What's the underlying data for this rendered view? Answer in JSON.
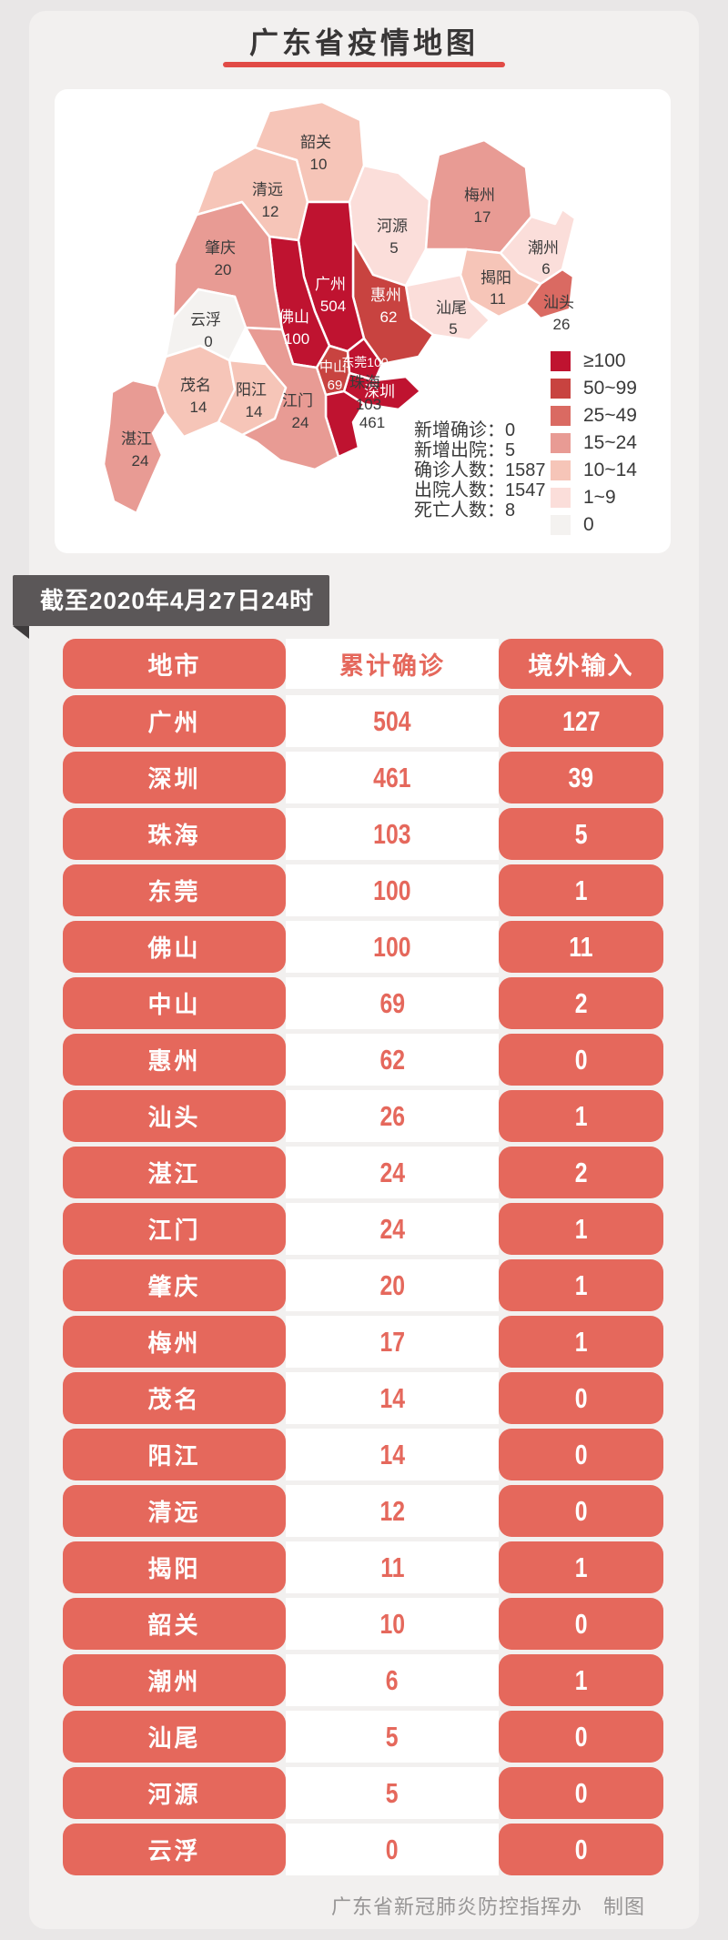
{
  "header": {
    "title": "广东省疫情地图"
  },
  "map_card": {
    "stats": [
      {
        "label": "新增确诊",
        "value": "0"
      },
      {
        "label": "新增出院",
        "value": "5"
      },
      {
        "label": "确诊人数",
        "value": "1587"
      },
      {
        "label": "出院人数",
        "value": "1547"
      },
      {
        "label": "死亡人数",
        "value": "8"
      }
    ],
    "legend": [
      {
        "label": "≥100",
        "color": "#bf1330"
      },
      {
        "label": "50~99",
        "color": "#c84340"
      },
      {
        "label": "25~49",
        "color": "#da6a62"
      },
      {
        "label": "15~24",
        "color": "#e89b94"
      },
      {
        "label": "10~14",
        "color": "#f6c5b8"
      },
      {
        "label": "1~9",
        "color": "#fbdeda"
      },
      {
        "label": "0",
        "color": "#f4f2f0"
      }
    ],
    "regions": [
      {
        "id": "shaoguan",
        "name": "韶关",
        "value": "10",
        "bucket": "10~14"
      },
      {
        "id": "qingyuan",
        "name": "清远",
        "value": "12",
        "bucket": "10~14"
      },
      {
        "id": "heyuan",
        "name": "河源",
        "value": "5",
        "bucket": "1~9"
      },
      {
        "id": "meizhou",
        "name": "梅州",
        "value": "17",
        "bucket": "15~24"
      },
      {
        "id": "chaozhou",
        "name": "潮州",
        "value": "6",
        "bucket": "1~9"
      },
      {
        "id": "shantou",
        "name": "汕头",
        "value": "26",
        "bucket": "25~49"
      },
      {
        "id": "jieyang",
        "name": "揭阳",
        "value": "11",
        "bucket": "10~14"
      },
      {
        "id": "shanwei",
        "name": "汕尾",
        "value": "5",
        "bucket": "1~9"
      },
      {
        "id": "huizhou",
        "name": "惠州",
        "value": "62",
        "bucket": "50~99"
      },
      {
        "id": "guangzhou",
        "name": "广州",
        "value": "504",
        "bucket": "≥100"
      },
      {
        "id": "dongguan",
        "name": "东莞",
        "value": "100",
        "bucket": "≥100"
      },
      {
        "id": "shenzhen",
        "name": "深圳",
        "value": "461",
        "bucket": "≥100"
      },
      {
        "id": "foshan",
        "name": "佛山",
        "value": "100",
        "bucket": "≥100"
      },
      {
        "id": "zhongshan",
        "name": "中山",
        "value": "69",
        "bucket": "50~99"
      },
      {
        "id": "zhuhai",
        "name": "珠海",
        "value": "103",
        "bucket": "≥100"
      },
      {
        "id": "jiangmen",
        "name": "江门",
        "value": "24",
        "bucket": "15~24"
      },
      {
        "id": "zhaoqing",
        "name": "肇庆",
        "value": "20",
        "bucket": "15~24"
      },
      {
        "id": "yunfu",
        "name": "云浮",
        "value": "0",
        "bucket": "0"
      },
      {
        "id": "maoming",
        "name": "茂名",
        "value": "14",
        "bucket": "10~14"
      },
      {
        "id": "yangjiang",
        "name": "阳江",
        "value": "14",
        "bucket": "10~14"
      },
      {
        "id": "zhanjiang",
        "name": "湛江",
        "value": "24",
        "bucket": "15~24"
      }
    ]
  },
  "banner": {
    "text": "截至2020年4月27日24时"
  },
  "table": {
    "headers": [
      "地市",
      "累计确诊",
      "境外输入"
    ],
    "rows": [
      {
        "city": "广州",
        "confirmed": "504",
        "imported": "127"
      },
      {
        "city": "深圳",
        "confirmed": "461",
        "imported": "39"
      },
      {
        "city": "珠海",
        "confirmed": "103",
        "imported": "5"
      },
      {
        "city": "东莞",
        "confirmed": "100",
        "imported": "1"
      },
      {
        "city": "佛山",
        "confirmed": "100",
        "imported": "11"
      },
      {
        "city": "中山",
        "confirmed": "69",
        "imported": "2"
      },
      {
        "city": "惠州",
        "confirmed": "62",
        "imported": "0"
      },
      {
        "city": "汕头",
        "confirmed": "26",
        "imported": "1"
      },
      {
        "city": "湛江",
        "confirmed": "24",
        "imported": "2"
      },
      {
        "city": "江门",
        "confirmed": "24",
        "imported": "1"
      },
      {
        "city": "肇庆",
        "confirmed": "20",
        "imported": "1"
      },
      {
        "city": "梅州",
        "confirmed": "17",
        "imported": "1"
      },
      {
        "city": "茂名",
        "confirmed": "14",
        "imported": "0"
      },
      {
        "city": "阳江",
        "confirmed": "14",
        "imported": "0"
      },
      {
        "city": "清远",
        "confirmed": "12",
        "imported": "0"
      },
      {
        "city": "揭阳",
        "confirmed": "11",
        "imported": "1"
      },
      {
        "city": "韶关",
        "confirmed": "10",
        "imported": "0"
      },
      {
        "city": "潮州",
        "confirmed": "6",
        "imported": "1"
      },
      {
        "city": "汕尾",
        "confirmed": "5",
        "imported": "0"
      },
      {
        "city": "河源",
        "confirmed": "5",
        "imported": "0"
      },
      {
        "city": "云浮",
        "confirmed": "0",
        "imported": "0"
      }
    ]
  },
  "footer": {
    "credit": "广东省新冠肺炎防控指挥办　制图"
  },
  "colors": {
    "accent_red": "#e5685c",
    "banner_gray": "#5b5758",
    "underline_red": "#e14b46"
  },
  "chart_data": {
    "type": "choropleth+table",
    "title": "广东省疫情地图",
    "as_of": "截至2020年4月27日24时",
    "summary": {
      "新增确诊": 0,
      "新增出院": 5,
      "确诊人数": 1587,
      "出院人数": 1547,
      "死亡人数": 8
    },
    "legend_buckets": [
      "≥100",
      "50~99",
      "25~49",
      "15~24",
      "10~14",
      "1~9",
      "0"
    ],
    "legend_colors": [
      "#bf1330",
      "#c84340",
      "#da6a62",
      "#e89b94",
      "#f6c5b8",
      "#fbdeda",
      "#f4f2f0"
    ],
    "cities": [
      {
        "name": "广州",
        "confirmed": 504,
        "imported": 127
      },
      {
        "name": "深圳",
        "confirmed": 461,
        "imported": 39
      },
      {
        "name": "珠海",
        "confirmed": 103,
        "imported": 5
      },
      {
        "name": "东莞",
        "confirmed": 100,
        "imported": 1
      },
      {
        "name": "佛山",
        "confirmed": 100,
        "imported": 11
      },
      {
        "name": "中山",
        "confirmed": 69,
        "imported": 2
      },
      {
        "name": "惠州",
        "confirmed": 62,
        "imported": 0
      },
      {
        "name": "汕头",
        "confirmed": 26,
        "imported": 1
      },
      {
        "name": "湛江",
        "confirmed": 24,
        "imported": 2
      },
      {
        "name": "江门",
        "confirmed": 24,
        "imported": 1
      },
      {
        "name": "肇庆",
        "confirmed": 20,
        "imported": 1
      },
      {
        "name": "梅州",
        "confirmed": 17,
        "imported": 1
      },
      {
        "name": "茂名",
        "confirmed": 14,
        "imported": 0
      },
      {
        "name": "阳江",
        "confirmed": 14,
        "imported": 0
      },
      {
        "name": "清远",
        "confirmed": 12,
        "imported": 0
      },
      {
        "name": "揭阳",
        "confirmed": 11,
        "imported": 1
      },
      {
        "name": "韶关",
        "confirmed": 10,
        "imported": 0
      },
      {
        "name": "潮州",
        "confirmed": 6,
        "imported": 1
      },
      {
        "name": "汕尾",
        "confirmed": 5,
        "imported": 0
      },
      {
        "name": "河源",
        "confirmed": 5,
        "imported": 0
      },
      {
        "name": "云浮",
        "confirmed": 0,
        "imported": 0
      }
    ]
  }
}
